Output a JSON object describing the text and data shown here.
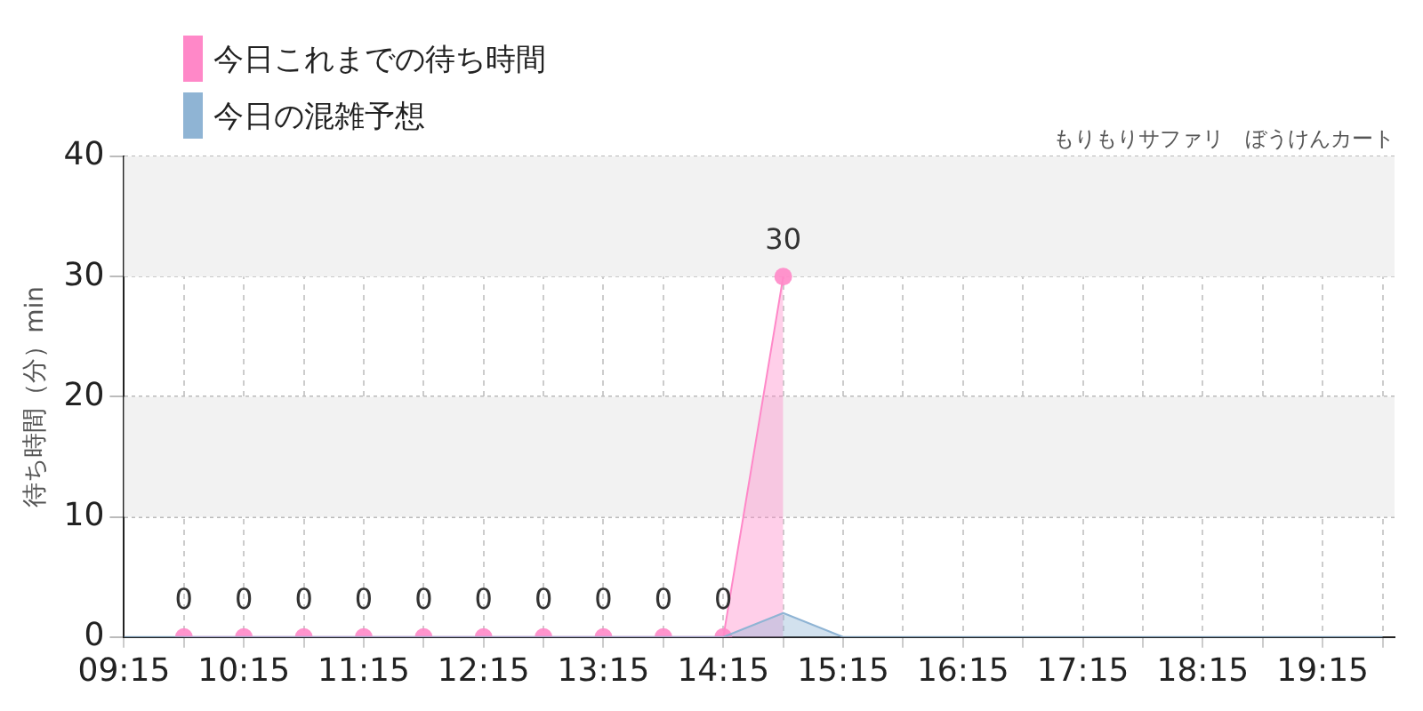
{
  "chart_data": {
    "type": "area",
    "ylabel": "待ち時間（分）min",
    "annotations": [
      "もりもりサファリ　ぼうけんカート"
    ],
    "legend": "top left",
    "grid": true,
    "xlim": [
      9.25,
      19.85
    ],
    "ylim": [
      0,
      40
    ],
    "yticks": [
      0,
      10,
      20,
      30,
      40
    ],
    "xticks": [
      {
        "value": 9.25,
        "label": "09:15"
      },
      {
        "value": 9.75,
        "label": null
      },
      {
        "value": 10.25,
        "label": "10:15"
      },
      {
        "value": 10.75,
        "label": null
      },
      {
        "value": 11.25,
        "label": "11:15"
      },
      {
        "value": 11.75,
        "label": null
      },
      {
        "value": 12.25,
        "label": "12:15"
      },
      {
        "value": 12.75,
        "label": null
      },
      {
        "value": 13.25,
        "label": "13:15"
      },
      {
        "value": 13.75,
        "label": null
      },
      {
        "value": 14.25,
        "label": "14:15"
      },
      {
        "value": 14.75,
        "label": null
      },
      {
        "value": 15.25,
        "label": "15:15"
      },
      {
        "value": 15.75,
        "label": null
      },
      {
        "value": 16.25,
        "label": "16:15"
      },
      {
        "value": 16.75,
        "label": null
      },
      {
        "value": 17.25,
        "label": "17:15"
      },
      {
        "value": 17.75,
        "label": null
      },
      {
        "value": 18.25,
        "label": "18:15"
      },
      {
        "value": 18.75,
        "label": null
      },
      {
        "value": 19.25,
        "label": "19:15"
      },
      {
        "value": 19.75,
        "label": null
      }
    ],
    "bands": [
      {
        "axis": "y",
        "from": 30,
        "to": 40,
        "color": "#f2f2f2"
      },
      {
        "axis": "y",
        "from": 10,
        "to": 20,
        "color": "#f2f2f2"
      }
    ],
    "series": [
      {
        "name": "今日これまでの待ち時間",
        "color": "#ff88c8",
        "marker": "circle",
        "x": [
          9.75,
          10.25,
          10.75,
          11.25,
          11.75,
          12.25,
          12.75,
          13.25,
          13.75,
          14.25,
          14.75
        ],
        "values": [
          0,
          0,
          0,
          0,
          0,
          0,
          0,
          0,
          0,
          0,
          30
        ],
        "value_labels": [
          "0",
          "0",
          "0",
          "0",
          "0",
          "0",
          "0",
          "0",
          "0",
          "0",
          "30"
        ]
      },
      {
        "name": "今日の混雑予想",
        "color": "#8fb4d4",
        "marker": "none",
        "x": [
          9.25,
          9.75,
          10.25,
          10.75,
          11.25,
          11.75,
          12.25,
          12.75,
          13.25,
          13.75,
          14.25,
          14.75,
          15.25,
          15.75,
          16.25,
          16.75,
          17.25,
          17.75,
          18.25,
          18.75,
          19.25,
          19.75
        ],
        "values": [
          0,
          0,
          0,
          0,
          0,
          0,
          0,
          0,
          0,
          0,
          0,
          2,
          0,
          0,
          0,
          0,
          0,
          0,
          0,
          0,
          0,
          0
        ]
      }
    ]
  }
}
